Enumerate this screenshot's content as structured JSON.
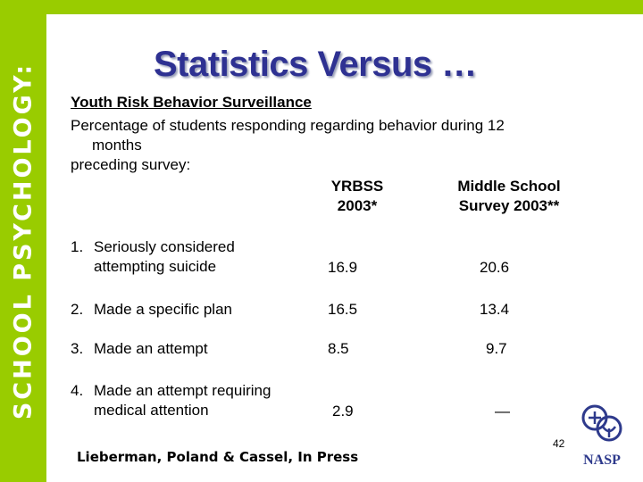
{
  "sidebar": {
    "text": "SCHOOL PSYCHOLOGY:"
  },
  "title": "Statistics Versus …",
  "heading": "Youth Risk Behavior Surveillance",
  "description": {
    "line1": "Percentage of students responding regarding behavior during 12",
    "line2": "months",
    "line3": "preceding survey:"
  },
  "columns": {
    "yrbss": {
      "line1": "YRBSS",
      "line2": "2003*"
    },
    "middle": {
      "line1": "Middle School",
      "line2": "Survey 2003**"
    }
  },
  "rows": [
    {
      "num": "1.",
      "line1": "Seriously considered",
      "line2": "attempting suicide",
      "yrbss": "16.9",
      "middle": "20.6"
    },
    {
      "num": "2.",
      "line1": "Made a specific plan",
      "line2": "",
      "yrbss": "16.5",
      "middle": "13.4"
    },
    {
      "num": "3.",
      "line1": "Made an attempt",
      "line2": "",
      "yrbss": "8.5",
      "middle": "9.7"
    },
    {
      "num": "4.",
      "line1": "Made an attempt requiring",
      "line2": "medical attention",
      "yrbss": "2.9",
      "middle": "—"
    }
  ],
  "citation": "Lieberman, Poland & Cassel, In Press",
  "page_number": "42",
  "logo": {
    "text": "NASP",
    "icon": "nasp-logo-icon"
  },
  "colors": {
    "accent_green": "#99cc00",
    "title_blue": "#2e3192",
    "logo_blue": "#2e3a8c"
  }
}
